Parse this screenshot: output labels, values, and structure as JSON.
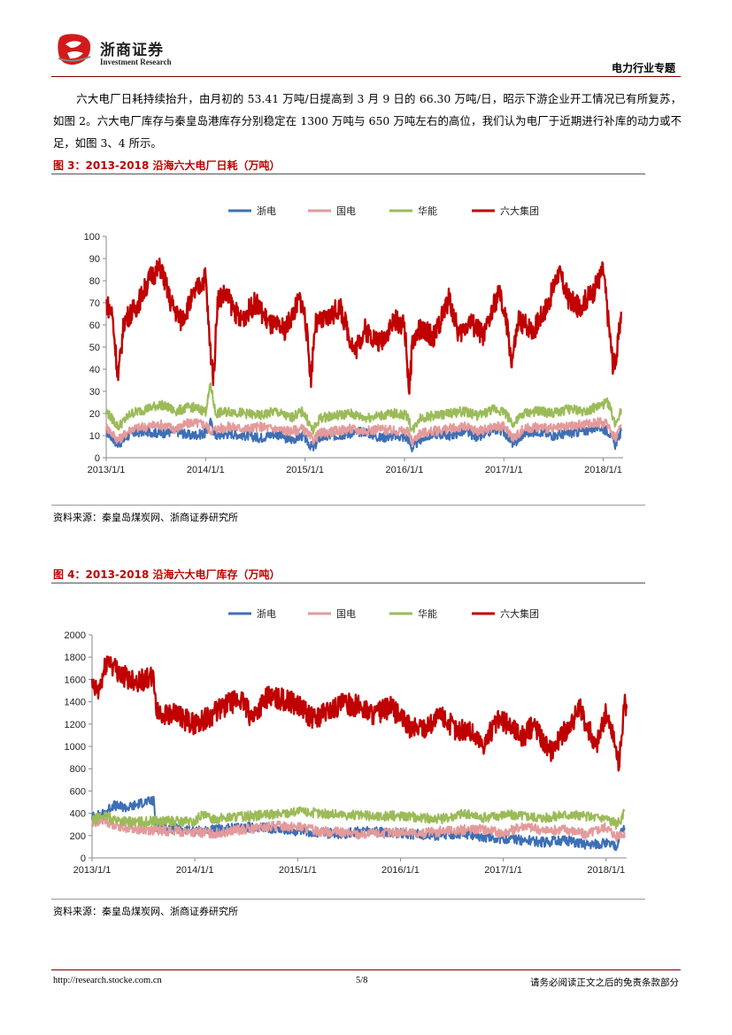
{
  "header": {
    "brand_cn": "浙商证券",
    "brand_en": "Investment Research",
    "report_type": "电力行业专题"
  },
  "body": {
    "paragraph": "六大电厂日耗持续抬升，由月初的 53.41 万吨/日提高到 3 月 9 日的 66.30 万吨/日，昭示下游企业开工情况已有所复苏，如图 2。六大电厂库存与秦皇岛港库存分别稳定在 1300 万吨与 650 万吨左右的高位，我们认为电厂于近期进行补库的动力或不足，如图 3、4 所示。"
  },
  "figures": [
    {
      "title": "图 3：2013-2018 沿海六大电厂日耗（万吨）",
      "source": "资料来源：秦皇岛煤炭网、浙商证券研究所"
    },
    {
      "title": "图 4：2013-2018 沿海六大电厂库存（万吨）",
      "source": "资料来源：秦皇岛煤炭网、浙商证券研究所"
    }
  ],
  "footer": {
    "url": "http://research.stocke.com.cn",
    "page": "5/8",
    "disclaimer": "请务必阅读正文之后的免责条款部分"
  },
  "colors": {
    "zhedian": "#3d6fb6",
    "guodian": "#e49a9a",
    "huaneng": "#9bbb59",
    "liuda": "#c00000",
    "accent": "#c00000"
  },
  "chart_data": [
    {
      "type": "line",
      "title": "图 3：2013-2018 沿海六大电厂日耗（万吨）",
      "ylim": [
        0,
        100
      ],
      "yticks": [
        "0",
        "10",
        "20",
        "30",
        "40",
        "50",
        "60",
        "70",
        "80",
        "90",
        "100"
      ],
      "xticks": [
        "2013/1/1",
        "2014/1/1",
        "2015/1/1",
        "2016/1/1",
        "2017/1/1",
        "2018/1/1"
      ],
      "x_range": [
        2013.0,
        2018.2
      ],
      "legend": [
        "浙电",
        "国电",
        "华能",
        "六大集团"
      ],
      "series": [
        {
          "name": "浙电",
          "color": "#3d6fb6",
          "x": [
            2013.0,
            2013.12,
            2013.25,
            2013.4,
            2013.55,
            2013.7,
            2013.85,
            2014.0,
            2014.05,
            2014.1,
            2014.25,
            2014.4,
            2014.55,
            2014.7,
            2014.85,
            2014.98,
            2015.08,
            2015.15,
            2015.3,
            2015.45,
            2015.6,
            2015.75,
            2015.9,
            2016.03,
            2016.08,
            2016.15,
            2016.3,
            2016.45,
            2016.6,
            2016.75,
            2016.9,
            2017.0,
            2017.1,
            2017.2,
            2017.35,
            2017.5,
            2017.65,
            2017.8,
            2017.95,
            2018.05,
            2018.12,
            2018.18
          ],
          "values": [
            12,
            6,
            11,
            12,
            11,
            12,
            10,
            11,
            16,
            10,
            11,
            10,
            9,
            11,
            8,
            10,
            4,
            9,
            10,
            11,
            12,
            9,
            10,
            9,
            4,
            8,
            11,
            10,
            12,
            9,
            13,
            12,
            6,
            11,
            12,
            10,
            11,
            12,
            14,
            12,
            6,
            12
          ]
        },
        {
          "name": "国电",
          "color": "#e49a9a",
          "x": [
            2013.0,
            2013.12,
            2013.25,
            2013.4,
            2013.55,
            2013.7,
            2013.85,
            2014.0,
            2014.05,
            2014.1,
            2014.25,
            2014.4,
            2014.55,
            2014.7,
            2014.85,
            2014.98,
            2015.08,
            2015.15,
            2015.3,
            2015.45,
            2015.6,
            2015.75,
            2015.9,
            2016.03,
            2016.08,
            2016.15,
            2016.3,
            2016.45,
            2016.6,
            2016.75,
            2016.9,
            2017.0,
            2017.1,
            2017.2,
            2017.35,
            2017.5,
            2017.65,
            2017.8,
            2017.95,
            2018.05,
            2018.12,
            2018.18
          ],
          "values": [
            14,
            8,
            13,
            14,
            15,
            13,
            16,
            15,
            12,
            13,
            14,
            13,
            14,
            13,
            12,
            13,
            8,
            11,
            12,
            13,
            12,
            13,
            12,
            12,
            7,
            11,
            12,
            13,
            14,
            12,
            14,
            14,
            9,
            13,
            14,
            13,
            14,
            15,
            16,
            15,
            9,
            15
          ]
        },
        {
          "name": "华能",
          "color": "#9bbb59",
          "x": [
            2013.0,
            2013.12,
            2013.25,
            2013.4,
            2013.55,
            2013.7,
            2013.85,
            2014.0,
            2014.05,
            2014.1,
            2014.25,
            2014.4,
            2014.55,
            2014.7,
            2014.85,
            2014.98,
            2015.08,
            2015.15,
            2015.3,
            2015.45,
            2015.6,
            2015.75,
            2015.9,
            2016.03,
            2016.08,
            2016.15,
            2016.3,
            2016.45,
            2016.6,
            2016.75,
            2016.9,
            2017.0,
            2017.1,
            2017.2,
            2017.35,
            2017.5,
            2017.65,
            2017.8,
            2017.95,
            2018.05,
            2018.12,
            2018.18
          ],
          "values": [
            21,
            14,
            20,
            22,
            24,
            21,
            23,
            21,
            33,
            20,
            21,
            20,
            19,
            21,
            18,
            21,
            12,
            18,
            19,
            20,
            18,
            19,
            20,
            19,
            12,
            18,
            19,
            20,
            21,
            19,
            22,
            21,
            15,
            20,
            21,
            20,
            22,
            21,
            23,
            25,
            15,
            22
          ]
        },
        {
          "name": "六大集团",
          "color": "#c00000",
          "x": [
            2013.0,
            2013.06,
            2013.12,
            2013.18,
            2013.3,
            2013.45,
            2013.55,
            2013.65,
            2013.75,
            2013.9,
            2014.0,
            2014.04,
            2014.08,
            2014.12,
            2014.2,
            2014.35,
            2014.5,
            2014.65,
            2014.8,
            2014.95,
            2015.0,
            2015.06,
            2015.1,
            2015.2,
            2015.35,
            2015.5,
            2015.6,
            2015.75,
            2015.9,
            2016.0,
            2016.05,
            2016.08,
            2016.15,
            2016.3,
            2016.45,
            2016.55,
            2016.65,
            2016.8,
            2016.95,
            2017.03,
            2017.08,
            2017.15,
            2017.3,
            2017.45,
            2017.55,
            2017.65,
            2017.75,
            2017.9,
            2018.0,
            2018.06,
            2018.1,
            2018.14,
            2018.18
          ],
          "values": [
            70,
            65,
            36,
            62,
            68,
            82,
            86,
            70,
            62,
            75,
            82,
            52,
            36,
            72,
            74,
            62,
            70,
            60,
            58,
            72,
            64,
            36,
            60,
            62,
            68,
            48,
            58,
            52,
            62,
            60,
            30,
            52,
            58,
            55,
            72,
            55,
            62,
            55,
            75,
            60,
            43,
            62,
            58,
            70,
            84,
            72,
            68,
            75,
            85,
            58,
            41,
            48,
            66
          ]
        }
      ]
    },
    {
      "type": "line",
      "title": "图 4：2013-2018 沿海六大电厂库存（万吨）",
      "ylim": [
        0,
        2000
      ],
      "yticks": [
        "0",
        "200",
        "400",
        "600",
        "800",
        "1000",
        "1200",
        "1400",
        "1600",
        "1800",
        "2000"
      ],
      "xticks": [
        "2013/1/1",
        "2014/1/1",
        "2015/1/1",
        "2016/1/1",
        "2017/1/1",
        "2018/1/1"
      ],
      "x_range": [
        2013.0,
        2018.2
      ],
      "legend": [
        "浙电",
        "国电",
        "华能",
        "六大集团"
      ],
      "series": [
        {
          "name": "浙电",
          "color": "#3d6fb6",
          "x": [
            2013.0,
            2013.1,
            2013.2,
            2013.35,
            2013.5,
            2013.6,
            2013.62,
            2013.8,
            2014.0,
            2014.2,
            2014.4,
            2014.6,
            2014.8,
            2015.0,
            2015.2,
            2015.4,
            2015.6,
            2015.8,
            2016.0,
            2016.2,
            2016.4,
            2016.6,
            2016.8,
            2017.0,
            2017.2,
            2017.4,
            2017.6,
            2017.8,
            2018.0,
            2018.1,
            2018.15,
            2018.18
          ],
          "values": [
            370,
            390,
            470,
            450,
            500,
            510,
            280,
            260,
            240,
            250,
            270,
            280,
            260,
            240,
            230,
            210,
            240,
            230,
            220,
            210,
            200,
            220,
            190,
            170,
            160,
            140,
            160,
            120,
            130,
            100,
            240,
            270
          ]
        },
        {
          "name": "国电",
          "color": "#e49a9a",
          "x": [
            2013.0,
            2013.1,
            2013.25,
            2013.4,
            2013.6,
            2013.8,
            2014.0,
            2014.2,
            2014.4,
            2014.6,
            2014.8,
            2015.0,
            2015.2,
            2015.4,
            2015.6,
            2015.8,
            2016.0,
            2016.2,
            2016.4,
            2016.6,
            2016.8,
            2017.0,
            2017.2,
            2017.4,
            2017.6,
            2017.8,
            2018.0,
            2018.1,
            2018.15,
            2018.18
          ],
          "values": [
            300,
            340,
            290,
            260,
            250,
            240,
            230,
            220,
            250,
            260,
            290,
            280,
            240,
            230,
            210,
            220,
            230,
            220,
            240,
            250,
            260,
            220,
            290,
            240,
            260,
            210,
            280,
            190,
            230,
            180
          ]
        },
        {
          "name": "华能",
          "color": "#9bbb59",
          "x": [
            2013.0,
            2013.1,
            2013.25,
            2013.4,
            2013.6,
            2013.8,
            2014.0,
            2014.05,
            2014.2,
            2014.4,
            2014.6,
            2014.8,
            2015.0,
            2015.2,
            2015.4,
            2015.6,
            2015.8,
            2016.0,
            2016.2,
            2016.4,
            2016.6,
            2016.8,
            2017.0,
            2017.2,
            2017.4,
            2017.6,
            2017.8,
            2018.0,
            2018.1,
            2018.15,
            2018.18
          ],
          "values": [
            330,
            380,
            340,
            320,
            330,
            330,
            320,
            380,
            350,
            370,
            380,
            390,
            420,
            400,
            390,
            380,
            370,
            380,
            360,
            350,
            400,
            360,
            390,
            380,
            360,
            390,
            370,
            360,
            300,
            340,
            420
          ]
        },
        {
          "name": "六大集团",
          "color": "#c00000",
          "x": [
            2013.0,
            2013.06,
            2013.15,
            2013.3,
            2013.45,
            2013.6,
            2013.63,
            2013.8,
            2014.0,
            2014.15,
            2014.3,
            2014.45,
            2014.55,
            2014.7,
            2014.85,
            2015.0,
            2015.15,
            2015.3,
            2015.45,
            2015.6,
            2015.75,
            2015.9,
            2016.0,
            2016.1,
            2016.25,
            2016.4,
            2016.55,
            2016.65,
            2016.8,
            2016.95,
            2017.05,
            2017.2,
            2017.3,
            2017.45,
            2017.6,
            2017.75,
            2017.9,
            2018.0,
            2018.08,
            2018.12,
            2018.15,
            2018.17,
            2018.2
          ],
          "values": [
            1530,
            1480,
            1780,
            1630,
            1590,
            1610,
            1300,
            1280,
            1200,
            1270,
            1370,
            1420,
            1260,
            1440,
            1420,
            1380,
            1240,
            1320,
            1380,
            1360,
            1280,
            1350,
            1260,
            1160,
            1180,
            1280,
            1140,
            1160,
            1020,
            1230,
            1200,
            1080,
            1210,
            950,
            1140,
            1330,
            1000,
            1300,
            1060,
            860,
            1000,
            1380,
            1340
          ]
        }
      ]
    }
  ]
}
